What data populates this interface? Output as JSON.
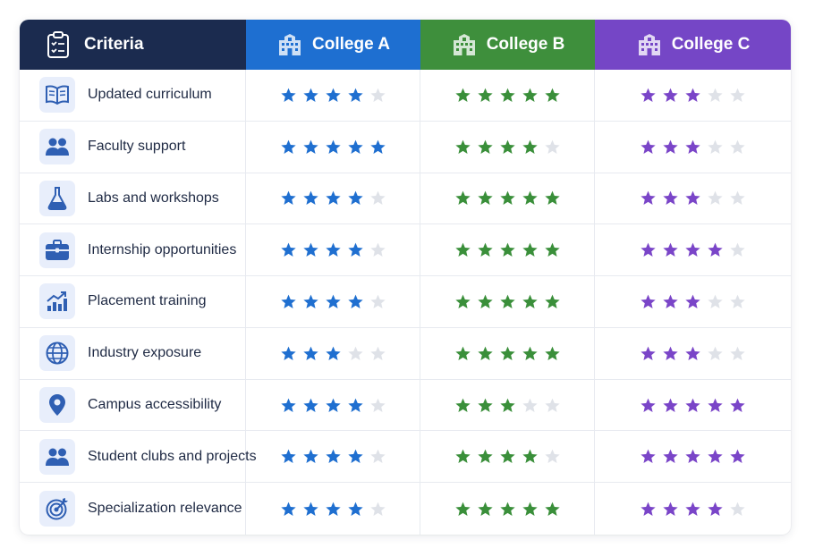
{
  "header": {
    "criteria_label": "Criteria",
    "colleges": [
      {
        "name": "College A",
        "color": "#1e6fd1",
        "star_color": "#1f6fd0"
      },
      {
        "name": "College B",
        "color": "#3e8f3c",
        "star_color": "#3a8f3a"
      },
      {
        "name": "College C",
        "color": "#7546c6",
        "star_color": "#7a45c8"
      }
    ],
    "criteria_bg": "#1b2b4f"
  },
  "empty_star_color": "#dfe2e8",
  "rows": [
    {
      "label": "Updated curriculum",
      "icon": "open-book-icon",
      "ratings": [
        4,
        5,
        3
      ]
    },
    {
      "label": "Faculty support",
      "icon": "people-icon",
      "ratings": [
        5,
        4,
        3
      ]
    },
    {
      "label": "Labs and workshops",
      "icon": "flask-icon",
      "ratings": [
        4,
        5,
        3
      ]
    },
    {
      "label": "Internship opportunities",
      "icon": "briefcase-icon",
      "ratings": [
        4,
        5,
        4
      ]
    },
    {
      "label": "Placement training",
      "icon": "growth-chart-icon",
      "ratings": [
        4,
        5,
        3
      ]
    },
    {
      "label": "Industry exposure",
      "icon": "globe-icon",
      "ratings": [
        3,
        5,
        3
      ]
    },
    {
      "label": "Campus accessibility",
      "icon": "location-pin-icon",
      "ratings": [
        4,
        3,
        5
      ]
    },
    {
      "label": "Student clubs and projects",
      "icon": "people-icon",
      "ratings": [
        4,
        4,
        5
      ]
    },
    {
      "label": "Specialization relevance",
      "icon": "target-icon",
      "ratings": [
        4,
        5,
        4
      ]
    }
  ]
}
